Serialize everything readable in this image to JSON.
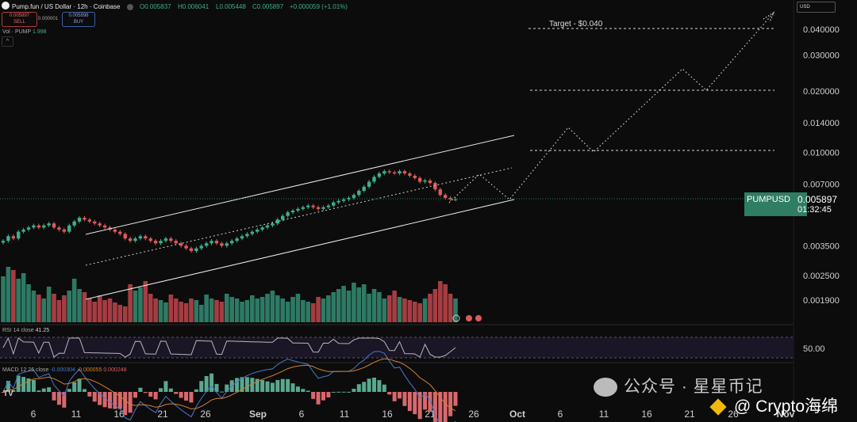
{
  "header": {
    "symbol_title": "Pump.fun / US Dollar · 12h · Coinbase",
    "open": "O0.005837",
    "high": "H0.006041",
    "low": "L0.005448",
    "close": "C0.005897",
    "change": "+0.000059 (+1.01%)",
    "sell_price": "0.005897",
    "sell_label": "SELL",
    "spread": "0.000001",
    "buy_price": "0.005898",
    "buy_label": "BUY",
    "vol_label": "Vol · PUMP",
    "vol_value": "1.998",
    "collapse_glyph": "^",
    "currency": "USD"
  },
  "chart_data": {
    "type": "candlestick",
    "symbol": "PUMPUSD",
    "interval": "12h",
    "y_scale": "log",
    "price_axis": [
      "0.040000",
      "0.030000",
      "0.020000",
      "0.014000",
      "0.010000",
      "0.007000",
      "0.003500",
      "0.002500",
      "0.001900"
    ],
    "x_axis": [
      "6",
      "11",
      "16",
      "21",
      "26",
      "Sep",
      "6",
      "11",
      "16",
      "21",
      "26",
      "Oct",
      "6",
      "11",
      "16",
      "21",
      "26",
      "Nov"
    ],
    "last_price": "0.005897",
    "countdown": "01:32:45",
    "annotations": [
      {
        "text": "Target - $0.040",
        "price": 0.04
      }
    ],
    "horizontal_levels": [
      0.04,
      0.02,
      0.01
    ],
    "candles_close": [
      0.0037,
      0.0039,
      0.0038,
      0.0041,
      0.0042,
      0.0043,
      0.0044,
      0.0043,
      0.0044,
      0.0045,
      0.0043,
      0.0042,
      0.0041,
      0.0044,
      0.0046,
      0.0048,
      0.0047,
      0.0046,
      0.0045,
      0.0044,
      0.0043,
      0.0042,
      0.0041,
      0.004,
      0.0038,
      0.0037,
      0.0038,
      0.0039,
      0.0038,
      0.0037,
      0.0036,
      0.0037,
      0.0038,
      0.0037,
      0.0036,
      0.0035,
      0.0034,
      0.0033,
      0.0034,
      0.0035,
      0.0036,
      0.0037,
      0.0036,
      0.0035,
      0.0036,
      0.0037,
      0.0038,
      0.0039,
      0.004,
      0.0041,
      0.0042,
      0.0043,
      0.0044,
      0.0045,
      0.0047,
      0.0049,
      0.0051,
      0.0052,
      0.0053,
      0.0054,
      0.0055,
      0.0054,
      0.0053,
      0.0054,
      0.0055,
      0.0057,
      0.0058,
      0.0059,
      0.006,
      0.0062,
      0.0065,
      0.0068,
      0.0072,
      0.0076,
      0.0079,
      0.0081,
      0.008,
      0.0079,
      0.0081,
      0.0079,
      0.0077,
      0.0075,
      0.0072,
      0.0073,
      0.0071,
      0.0066,
      0.0062,
      0.006,
      0.0059,
      0.0059
    ],
    "volume": [
      58,
      70,
      66,
      55,
      62,
      48,
      40,
      35,
      30,
      45,
      36,
      28,
      34,
      40,
      55,
      42,
      38,
      30,
      26,
      34,
      28,
      30,
      25,
      22,
      20,
      48,
      40,
      44,
      52,
      36,
      30,
      28,
      25,
      35,
      30,
      26,
      24,
      30,
      28,
      22,
      35,
      30,
      28,
      26,
      36,
      32,
      30,
      26,
      28,
      34,
      30,
      32,
      36,
      40,
      34,
      30,
      26,
      32,
      36,
      28,
      26,
      24,
      32,
      30,
      34,
      38,
      42,
      46,
      40,
      50,
      44,
      48,
      36,
      42,
      38,
      30,
      34,
      40,
      32,
      30,
      28,
      26,
      24,
      30,
      36,
      42,
      52,
      48,
      36,
      30
    ],
    "rsi": {
      "label": "RSI",
      "params": "14 close",
      "value": "41.25",
      "level": "50.00"
    },
    "macd": {
      "label": "MACD",
      "params": "12 26 close",
      "macd": "-0.000304",
      "signal": "-0.000055",
      "hist": "0.000248"
    }
  },
  "watermark": {
    "primary": "公众号 · 星星币记",
    "secondary": "@ Crypto海绵",
    "logo": "TV"
  },
  "colors": {
    "up": "#3fae8a",
    "down": "#e05a5a",
    "label_bg": "#2f7d62"
  }
}
